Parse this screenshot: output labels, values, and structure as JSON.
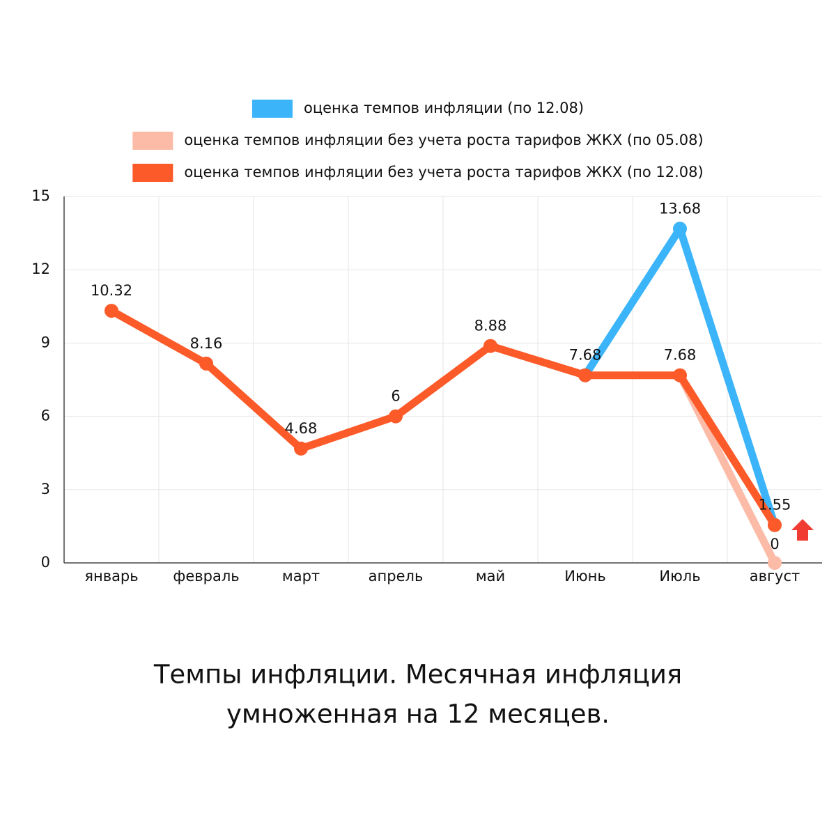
{
  "chart_data": {
    "type": "line",
    "title": [
      "Темпы инфляции. Месячная инфляция",
      "умноженная на 12 месяцев."
    ],
    "categories": [
      "январь",
      "февраль",
      "март",
      "апрель",
      "май",
      "Июнь",
      "Июль",
      "август"
    ],
    "series": [
      {
        "name": "оценка темпов инфляции (по 12.08)",
        "color": "#3cb4fa",
        "values": [
          null,
          null,
          null,
          null,
          null,
          7.68,
          13.68,
          1.55
        ]
      },
      {
        "name": "оценка темпов инфляции без учета роста тарифов ЖКХ (по 05.08)",
        "color": "#fcbba6",
        "values": [
          null,
          null,
          null,
          null,
          null,
          null,
          7.68,
          0
        ]
      },
      {
        "name": "оценка темпов инфляции без учета роста тарифов ЖКХ (по 12.08)",
        "color": "#fc5a28",
        "values": [
          10.32,
          8.16,
          4.68,
          6,
          8.88,
          7.68,
          7.68,
          1.55
        ]
      }
    ],
    "ylim": [
      0,
      15
    ],
    "yticks": [
      0,
      3,
      6,
      9,
      12,
      15
    ],
    "grid": true
  }
}
